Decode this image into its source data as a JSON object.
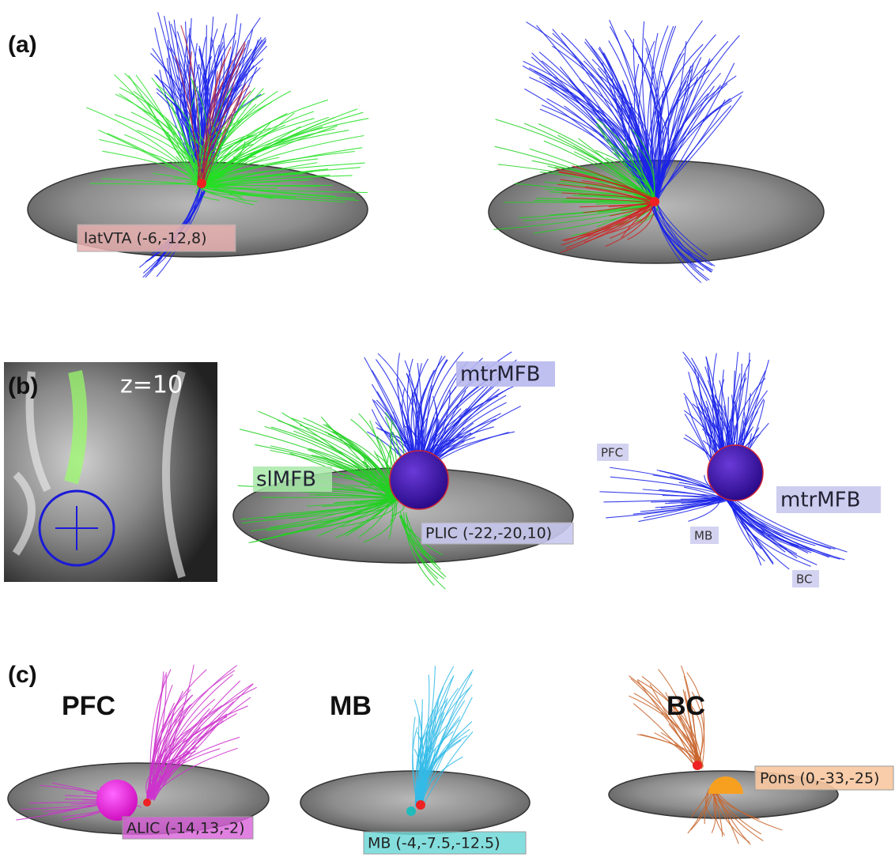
{
  "panel_a": {
    "label": "(a)",
    "roi_label": "latVTA (-6,-12,8)"
  },
  "panel_b": {
    "label": "(b)",
    "slice_label": "z=10",
    "middle": {
      "tract_label_top": "mtrMFB",
      "tract_label_left": "slMFB",
      "roi_label": "PLIC (-22,-20,10)"
    },
    "right": {
      "label_pfc": "PFC",
      "label_tract": "mtrMFB",
      "label_mb": "MB",
      "label_bc": "BC"
    }
  },
  "panel_c": {
    "label": "(c)",
    "views": [
      {
        "title": "PFC",
        "roi_label": "ALIC (-14,13,-2)"
      },
      {
        "title": "MB",
        "roi_label": "MB (-4,-7.5,-12.5)"
      },
      {
        "title": "BC",
        "roi_label": "Pons (0,-33,-25)"
      }
    ]
  }
}
